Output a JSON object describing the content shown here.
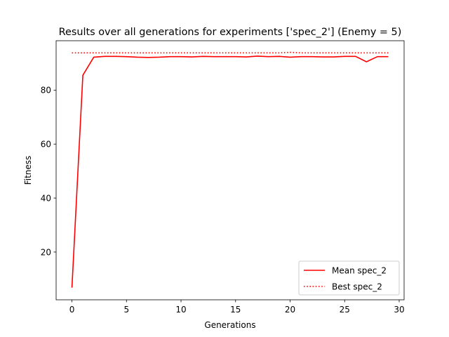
{
  "chart_data": {
    "type": "line",
    "title": "Results over all generations for experiments ['spec_2'] (Enemy = 5)",
    "xlabel": "Generations",
    "ylabel": "Fitness",
    "xlim": [
      -1.45,
      30.45
    ],
    "ylim": [
      2.3,
      98.3
    ],
    "xticks": [
      0,
      5,
      10,
      15,
      20,
      25,
      30
    ],
    "yticks": [
      20,
      40,
      60,
      80
    ],
    "grid": false,
    "legend_position": "lower-right",
    "x": [
      0,
      1,
      2,
      3,
      4,
      5,
      6,
      7,
      8,
      9,
      10,
      11,
      12,
      13,
      14,
      15,
      16,
      17,
      18,
      19,
      20,
      21,
      22,
      23,
      24,
      25,
      26,
      27,
      28,
      29
    ],
    "series": [
      {
        "name": "Mean spec_2",
        "style": "solid",
        "color": "#ff0000",
        "values": [
          6.8,
          85.5,
          92.2,
          92.5,
          92.5,
          92.4,
          92.2,
          92.1,
          92.2,
          92.4,
          92.4,
          92.3,
          92.5,
          92.4,
          92.4,
          92.4,
          92.3,
          92.6,
          92.4,
          92.5,
          92.2,
          92.4,
          92.4,
          92.3,
          92.3,
          92.5,
          92.5,
          90.5,
          92.4,
          92.4
        ]
      },
      {
        "name": "Best spec_2",
        "style": "dotted",
        "color": "#ff0000",
        "values": [
          93.8,
          93.8,
          93.8,
          93.8,
          93.8,
          93.8,
          93.8,
          93.8,
          93.8,
          93.8,
          93.8,
          93.8,
          93.8,
          93.8,
          93.8,
          93.8,
          93.8,
          93.8,
          93.8,
          93.8,
          94.0,
          93.8,
          93.8,
          93.8,
          93.8,
          93.8,
          93.8,
          93.8,
          93.8,
          93.8
        ]
      }
    ]
  }
}
